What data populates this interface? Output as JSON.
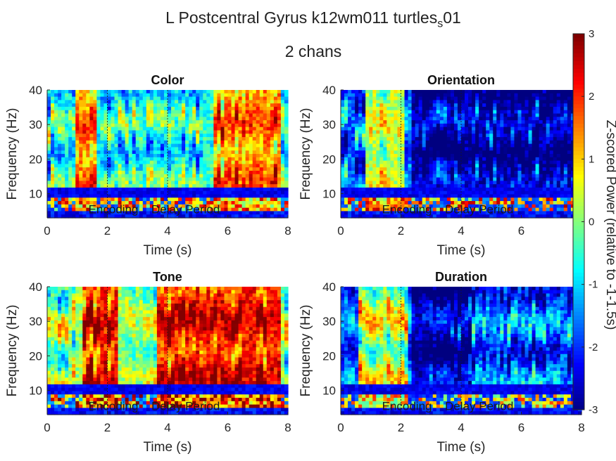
{
  "figure": {
    "title_line1": "L Postcentral Gyrus k12wm011 turtles",
    "title_sub": "s",
    "title_tail": "01",
    "title_line2": "2 chans"
  },
  "colormap": "jet",
  "colorbar": {
    "label": "Z-scored Power (relative to -1-1.5s)",
    "ticks": [
      3,
      2,
      1,
      0,
      -1,
      -2,
      -3
    ],
    "range": [
      -3,
      3
    ]
  },
  "chart_data": [
    {
      "type": "heatmap",
      "title": "Color",
      "xlabel": "Time (s)",
      "ylabel": "Frequency (Hz)",
      "xlim": [
        0,
        8
      ],
      "ylim": [
        3,
        40
      ],
      "xticks": [
        0,
        2,
        4,
        6,
        8
      ],
      "yticks": [
        10,
        20,
        30,
        40
      ],
      "annotations": [
        "Encoding",
        "Delay Period"
      ],
      "phase_markers": [
        2,
        4
      ]
    },
    {
      "type": "heatmap",
      "title": "Orientation",
      "xlabel": "Time (s)",
      "ylabel": "Frequency (Hz)",
      "xlim": [
        0,
        8
      ],
      "ylim": [
        3,
        40
      ],
      "xticks": [
        0,
        2,
        4,
        6
      ],
      "yticks": [
        10,
        20,
        30,
        40
      ],
      "annotations": [
        "Encoding",
        "Delay Period"
      ],
      "phase_markers": [
        2,
        4
      ]
    },
    {
      "type": "heatmap",
      "title": "Tone",
      "xlabel": "Time (s)",
      "ylabel": "Frequency (Hz)",
      "xlim": [
        0,
        8
      ],
      "ylim": [
        3,
        40
      ],
      "xticks": [
        0,
        2,
        4,
        6,
        8
      ],
      "yticks": [
        10,
        20,
        30,
        40
      ],
      "annotations": [
        "Encoding",
        "Delay Period"
      ],
      "phase_markers": [
        2,
        4
      ]
    },
    {
      "type": "heatmap",
      "title": "Duration",
      "xlabel": "Time (s)",
      "ylabel": "Frequency (Hz)",
      "xlim": [
        0,
        8
      ],
      "ylim": [
        3,
        40
      ],
      "xticks": [
        0,
        2,
        4,
        6,
        8
      ],
      "yticks": [
        10,
        20,
        30,
        40
      ],
      "annotations": [
        "Encoding",
        "Delay Period"
      ],
      "phase_markers": [
        2,
        4
      ]
    }
  ]
}
